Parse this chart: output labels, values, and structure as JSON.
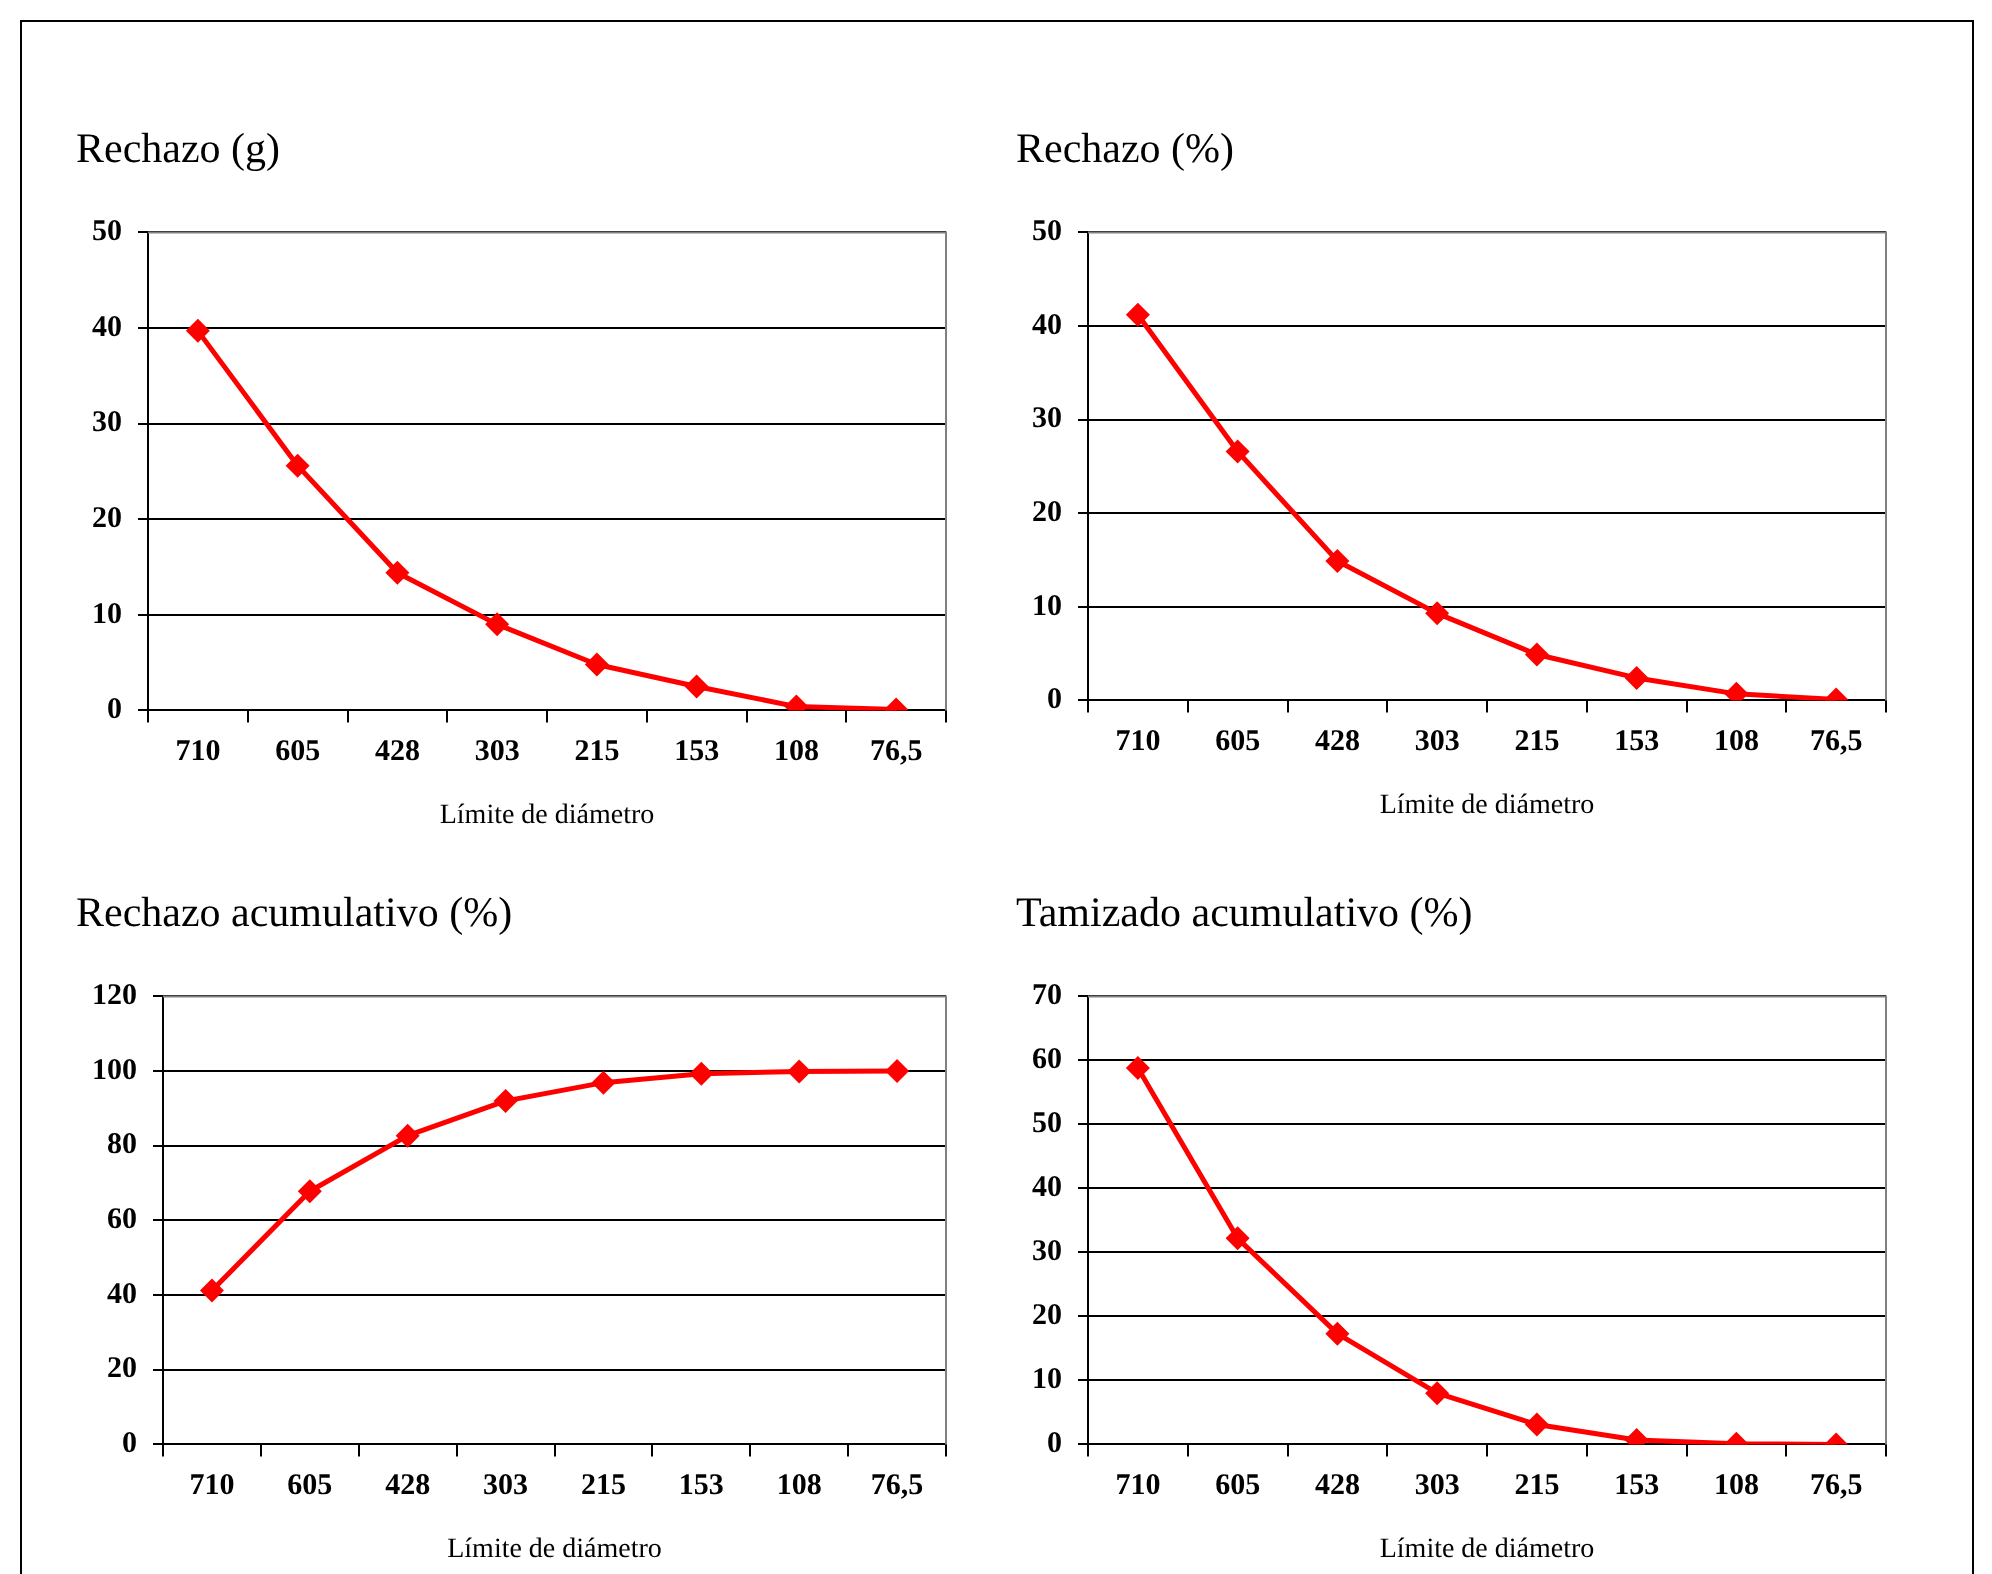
{
  "chart_data": [
    {
      "type": "line",
      "title": "Rechazo (g)",
      "xlabel": "Límite de diámetro",
      "categories": [
        "710",
        "605",
        "428",
        "303",
        "215",
        "153",
        "108",
        "76,5"
      ],
      "series": [
        {
          "color": "#ff0000",
          "values": [
            39.7,
            25.6,
            14.4,
            9,
            4.8,
            2.5,
            0.4,
            0.1
          ]
        }
      ],
      "ylim": [
        0,
        50
      ],
      "yticks": [
        0,
        10,
        20,
        30,
        40,
        50
      ],
      "grid": "y",
      "marker": "diamond",
      "line_style": "solid"
    },
    {
      "type": "line",
      "title": "Rechazo (%)",
      "xlabel": "Límite de diámetro",
      "categories": [
        "710",
        "605",
        "428",
        "303",
        "215",
        "153",
        "108",
        "76,5"
      ],
      "series": [
        {
          "color": "#ff0000",
          "values": [
            41.2,
            26.6,
            14.9,
            9.3,
            4.9,
            2.4,
            0.7,
            0.1
          ]
        }
      ],
      "ylim": [
        0,
        50
      ],
      "yticks": [
        0,
        10,
        20,
        30,
        40,
        50
      ],
      "grid": "y",
      "marker": "diamond",
      "line_style": "solid"
    },
    {
      "type": "line",
      "title": "Rechazo acumulativo (%)",
      "xlabel": "Límite de diámetro",
      "categories": [
        "710",
        "605",
        "428",
        "303",
        "215",
        "153",
        "108",
        "76,5"
      ],
      "series": [
        {
          "color": "#ff0000",
          "values": [
            41.2,
            67.8,
            82.7,
            92,
            96.9,
            99.3,
            99.9,
            100
          ]
        }
      ],
      "ylim": [
        0,
        120
      ],
      "yticks": [
        0,
        20,
        40,
        60,
        80,
        100,
        120
      ],
      "grid": "y",
      "marker": "diamond",
      "line_style": "solid"
    },
    {
      "type": "line",
      "title": "Tamizado acumulativo (%)",
      "xlabel": "Límite de diámetro",
      "categories": [
        "710",
        "605",
        "428",
        "303",
        "215",
        "153",
        "108",
        "76,5"
      ],
      "series": [
        {
          "color": "#ff0000",
          "values": [
            58.8,
            32.2,
            17.3,
            8,
            3.1,
            0.7,
            0.1,
            0
          ]
        }
      ],
      "ylim": [
        0,
        70
      ],
      "yticks": [
        0,
        10,
        20,
        30,
        40,
        50,
        60,
        70
      ],
      "grid": "y",
      "marker": "diamond",
      "line_style": "solid"
    }
  ]
}
